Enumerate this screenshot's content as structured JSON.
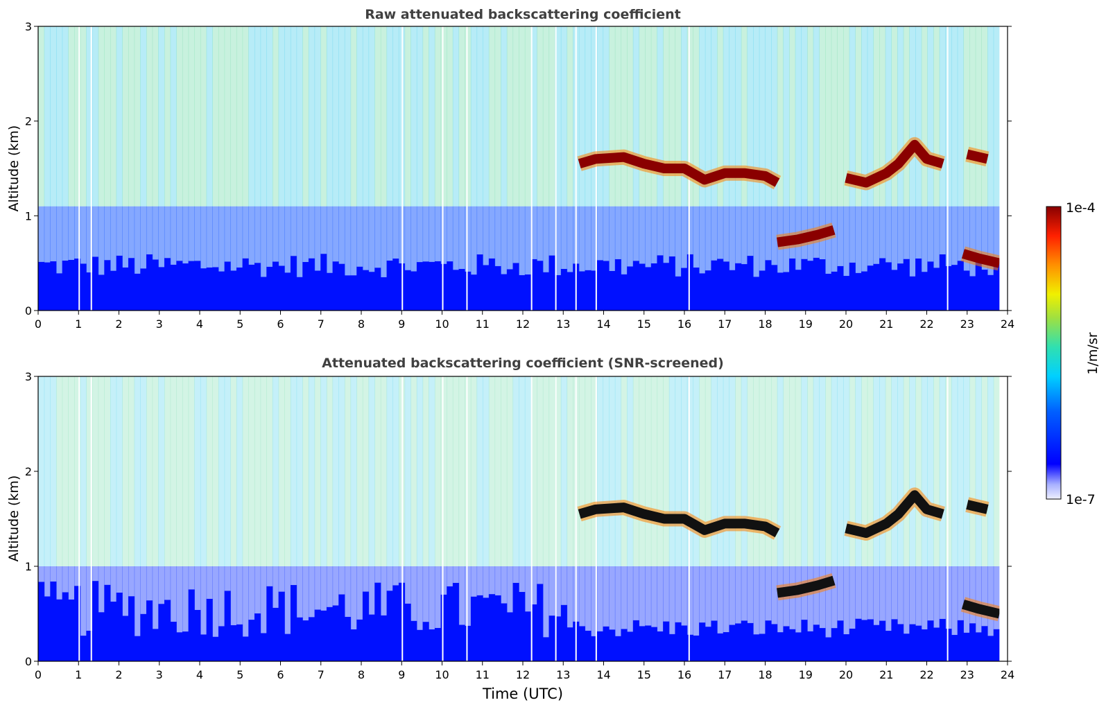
{
  "chart_data": [
    {
      "type": "heatmap",
      "title": "Raw attenuated backscattering coefficient",
      "xlabel": "",
      "ylabel": "Altitude (km)",
      "xlim": [
        0,
        24
      ],
      "ylim": [
        0,
        3
      ],
      "xticks": [
        "0",
        "1",
        "2",
        "3",
        "4",
        "5",
        "6",
        "7",
        "8",
        "9",
        "10",
        "11",
        "12",
        "13",
        "14",
        "15",
        "16",
        "17",
        "18",
        "19",
        "20",
        "21",
        "22",
        "23",
        "24"
      ],
      "yticks": [
        "0",
        "1",
        "2",
        "3"
      ],
      "colormap": "jet",
      "features": {
        "cloud_layer": [
          [
            13.4,
            1.55
          ],
          [
            13.8,
            1.6
          ],
          [
            14.5,
            1.62
          ],
          [
            15.0,
            1.55
          ],
          [
            15.5,
            1.5
          ],
          [
            16.0,
            1.5
          ],
          [
            16.5,
            1.38
          ],
          [
            17.0,
            1.45
          ],
          [
            17.5,
            1.45
          ],
          [
            18.0,
            1.42
          ],
          [
            18.3,
            1.35
          ]
        ],
        "cloud_layer_2": [
          [
            20.0,
            1.4
          ],
          [
            20.5,
            1.35
          ],
          [
            21.0,
            1.45
          ],
          [
            21.3,
            1.55
          ],
          [
            21.7,
            1.75
          ],
          [
            22.0,
            1.6
          ],
          [
            22.4,
            1.55
          ]
        ],
        "cloud_layer_3": [
          [
            23.0,
            1.65
          ],
          [
            23.5,
            1.6
          ]
        ],
        "low_cloud": [
          [
            18.3,
            0.72
          ],
          [
            18.8,
            0.75
          ],
          [
            19.3,
            0.8
          ],
          [
            19.7,
            0.85
          ]
        ],
        "low_cloud_2": [
          [
            22.9,
            0.6
          ],
          [
            23.3,
            0.55
          ],
          [
            23.8,
            0.5
          ]
        ],
        "data_gaps": [
          1.0,
          1.3,
          9.0,
          10.0,
          10.6,
          12.2,
          12.8,
          13.3,
          13.8,
          16.1,
          22.5
        ]
      }
    },
    {
      "type": "heatmap",
      "title": "Attenuated backscattering coefficient (SNR-screened)",
      "xlabel": "Time (UTC)",
      "ylabel": "Altitude (km)",
      "xlim": [
        0,
        24
      ],
      "ylim": [
        0,
        3
      ],
      "xticks": [
        "0",
        "1",
        "2",
        "3",
        "4",
        "5",
        "6",
        "7",
        "8",
        "9",
        "10",
        "11",
        "12",
        "13",
        "14",
        "15",
        "16",
        "17",
        "18",
        "19",
        "20",
        "21",
        "22",
        "23",
        "24"
      ],
      "yticks": [
        "0",
        "1",
        "2",
        "3"
      ],
      "colormap": "jet"
    }
  ],
  "colorbar": {
    "label": "1/m/sr",
    "max_label": "1e-4",
    "min_label": "1e-7",
    "scale": "log",
    "range": [
      1e-07,
      0.0001
    ]
  }
}
